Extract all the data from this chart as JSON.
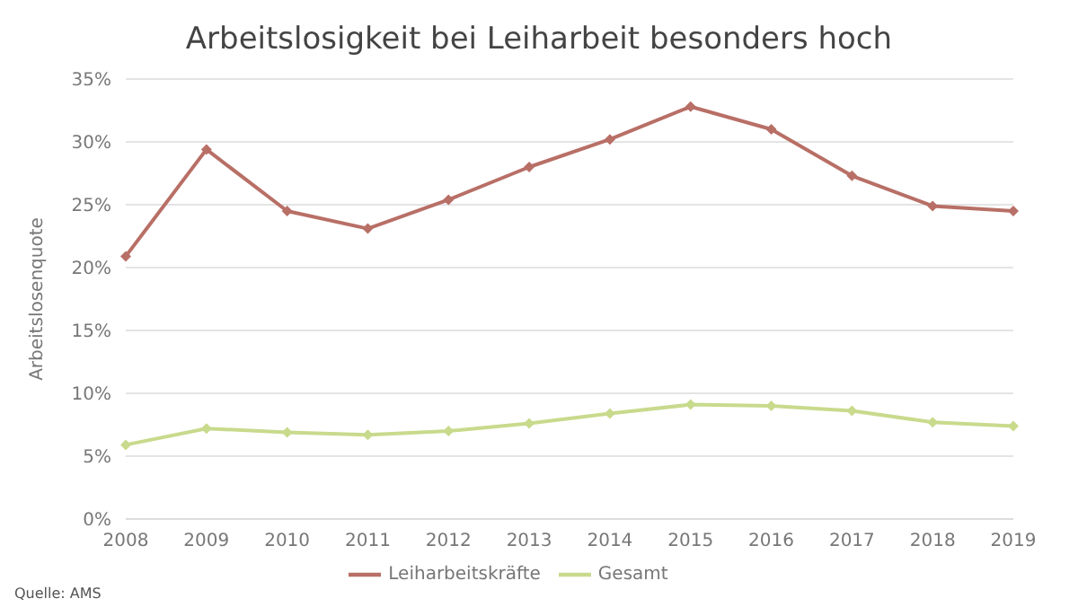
{
  "chart_data": {
    "type": "line",
    "title": "Arbeitslosigkeit bei Leiharbeit besonders hoch",
    "ylabel": "Arbeitslosenquote",
    "categories": [
      "2008",
      "2009",
      "2010",
      "2011",
      "2012",
      "2013",
      "2014",
      "2015",
      "2016",
      "2017",
      "2018",
      "2019"
    ],
    "series": [
      {
        "name": "Leiharbeitskräfte",
        "color": "#b86f66",
        "values": [
          20.9,
          29.4,
          24.5,
          23.1,
          25.4,
          28.0,
          30.2,
          32.8,
          31.0,
          27.3,
          24.9,
          24.5
        ]
      },
      {
        "name": "Gesamt",
        "color": "#c8da8c",
        "values": [
          5.9,
          7.2,
          6.9,
          6.7,
          7.0,
          7.6,
          8.4,
          9.1,
          9.0,
          8.6,
          7.7,
          7.4
        ]
      }
    ],
    "ylim": [
      0,
      35
    ],
    "yticks": [
      {
        "value": 0,
        "label": "0%"
      },
      {
        "value": 5,
        "label": "5%"
      },
      {
        "value": 10,
        "label": "10%"
      },
      {
        "value": 15,
        "label": "15%"
      },
      {
        "value": 20,
        "label": "20%"
      },
      {
        "value": 25,
        "label": "25%"
      },
      {
        "value": 30,
        "label": "30%"
      },
      {
        "value": 35,
        "label": "35%"
      }
    ],
    "grid": "y",
    "legend": "bottom",
    "marker": "diamond",
    "line_style": "solid",
    "annotations": [
      "Quelle: AMS"
    ]
  }
}
